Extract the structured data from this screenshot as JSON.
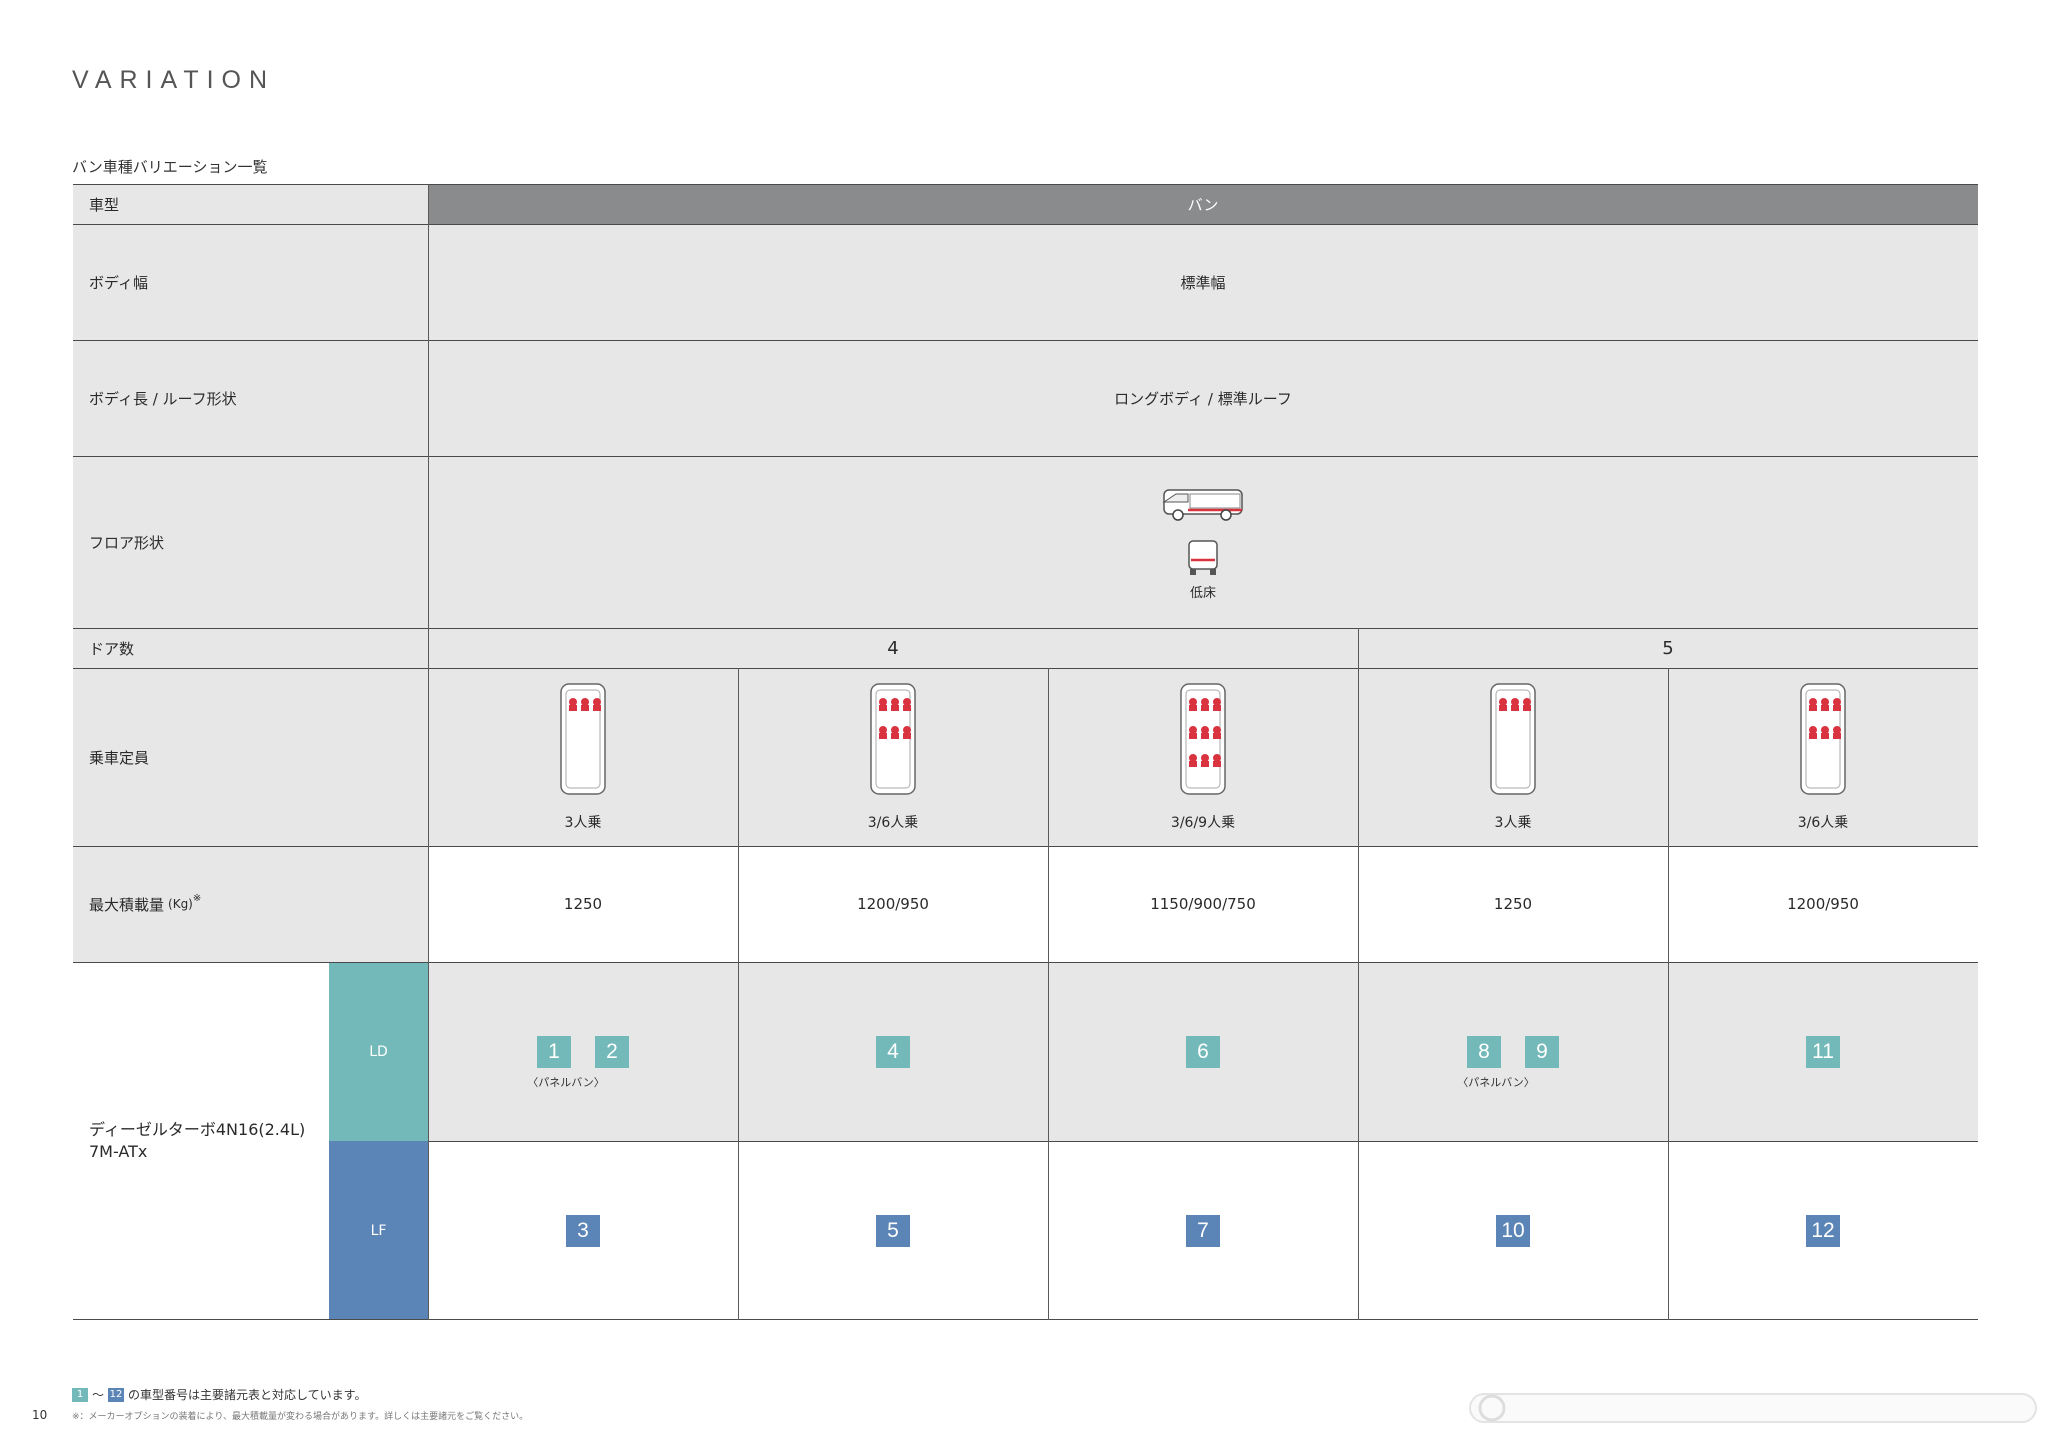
{
  "heading": "VARIATION",
  "subtitle": "バン車種バリエーション一覧",
  "rows": {
    "model_label": "車型",
    "model_value": "バン",
    "width_label": "ボディ幅",
    "width_value": "標準幅",
    "length_label": "ボディ長 / ルーフ形状",
    "length_value": "ロングボディ / 標準ルーフ",
    "floor_label": "フロア形状",
    "floor_value": "低床",
    "doors_label": "ドア数",
    "doors_4": "4",
    "doors_5": "5",
    "capacity_label": "乗車定員",
    "load_label": "最大積載量",
    "load_unit": "(Kg)",
    "load_mark": "※",
    "engine_line1": "ディーゼルターボ4N16(2.4L)",
    "engine_line2": "7M-ATx",
    "ld_label": "LD",
    "lf_label": "LF"
  },
  "columns": [
    {
      "capacity": "3人乗",
      "load": "1250",
      "ld": [
        "1",
        "2"
      ],
      "ld_note": "〈パネルバン〉",
      "lf": "3"
    },
    {
      "capacity": "3/6人乗",
      "load": "1200/950",
      "ld": [
        "4"
      ],
      "ld_note": "",
      "lf": "5"
    },
    {
      "capacity": "3/6/9人乗",
      "load": "1150/900/750",
      "ld": [
        "6"
      ],
      "ld_note": "",
      "lf": "7"
    },
    {
      "capacity": "3人乗",
      "load": "1250",
      "ld": [
        "8",
        "9"
      ],
      "ld_note": "〈パネルバン〉",
      "lf": "10"
    },
    {
      "capacity": "3/6人乗",
      "load": "1200/950",
      "ld": [
        "11"
      ],
      "ld_note": "",
      "lf": "12"
    }
  ],
  "footer": {
    "badge_first": "1",
    "tilde": "〜",
    "badge_last": "12",
    "note1": "の車型番号は主要諸元表と対応しています。",
    "note2": "※：メーカーオプションの装着により、最大積載量が変わる場合があります。詳しくは主要諸元をご覧ください。",
    "page": "10"
  },
  "colors": {
    "header_gray": "#8a8b8d",
    "row_gray": "#e7e7e7",
    "ld": "#74b9b9",
    "lf": "#5b85b6",
    "accent_red": "#d9333f"
  }
}
